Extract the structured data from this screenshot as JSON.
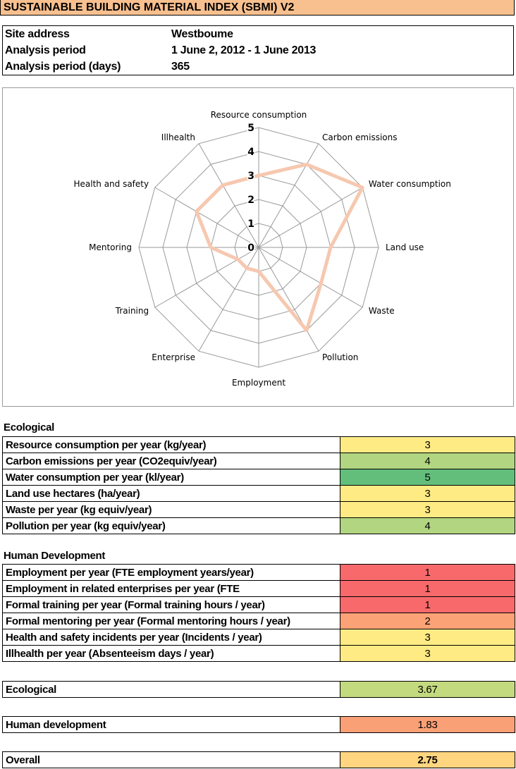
{
  "title": "SUSTAINABLE BUILDING MATERIAL INDEX  (SBMI) V2",
  "info": [
    {
      "label": "Site address",
      "value": "Westboume"
    },
    {
      "label": "Analysis period",
      "value": "1 June 2, 2012 - 1 June 2013"
    },
    {
      "label": "Analysis period (days)",
      "value": "365"
    }
  ],
  "chart_data": {
    "type": "radar",
    "categories": [
      "Resource consumption",
      "Carbon emissions",
      "Water consumption",
      "Land use",
      "Waste",
      "Pollution",
      "Employment",
      "Enterprise",
      "Training",
      "Mentoring",
      "Health and safety",
      "Illhealth"
    ],
    "values": [
      3,
      4,
      5,
      3,
      3,
      4,
      1,
      1,
      1,
      2,
      3,
      3
    ],
    "rlim": [
      0,
      5
    ],
    "ticks": [
      "0",
      "1",
      "2",
      "3",
      "4",
      "5"
    ],
    "series_color": "#F6C8B0",
    "grid": true
  },
  "ecological": {
    "heading": "Ecological",
    "rows": [
      {
        "label": "Resource consumption per year (kg/year)",
        "value": "3",
        "color": "#FFEB84"
      },
      {
        "label": "Carbon emissions per year (CO2equiv/year)",
        "value": "4",
        "color": "#B1D580"
      },
      {
        "label": "Water consumption per year (kl/year)",
        "value": "5",
        "color": "#63BE7B"
      },
      {
        "label": "Land use hectares (ha/year)",
        "value": "3",
        "color": "#FFEB84"
      },
      {
        "label": "Waste per year (kg equiv/year)",
        "value": "3",
        "color": "#FFEB84"
      },
      {
        "label": "Pollution per year (kg equiv/year)",
        "value": "4",
        "color": "#B1D580"
      }
    ]
  },
  "human": {
    "heading": "Human Development",
    "rows": [
      {
        "label": "Employment per year (FTE employment years/year)",
        "value": "1",
        "color": "#F8696B"
      },
      {
        "label": "Employment in related enterprises per year (FTE",
        "value": "1",
        "color": "#F8696B"
      },
      {
        "label": "Formal training per year (Formal training hours / year)",
        "value": "1",
        "color": "#F8696B"
      },
      {
        "label": "Formal mentoring per year (Formal mentoring hours / year)",
        "value": "2",
        "color": "#FBA276"
      },
      {
        "label": "Health and safety incidents per year (Incidents / year)",
        "value": "3",
        "color": "#FFEB84"
      },
      {
        "label": "Illhealth  per year (Absenteeism days / year)",
        "value": "3",
        "color": "#FFEB84"
      }
    ]
  },
  "summary": [
    {
      "label": "Ecological",
      "value": "3.67",
      "color": "#C4DA7F"
    },
    {
      "label": "Human development",
      "value": "1.83",
      "color": "#FAA076"
    },
    {
      "label": "Overall",
      "value": "2.75",
      "color": "#FFD580"
    }
  ]
}
